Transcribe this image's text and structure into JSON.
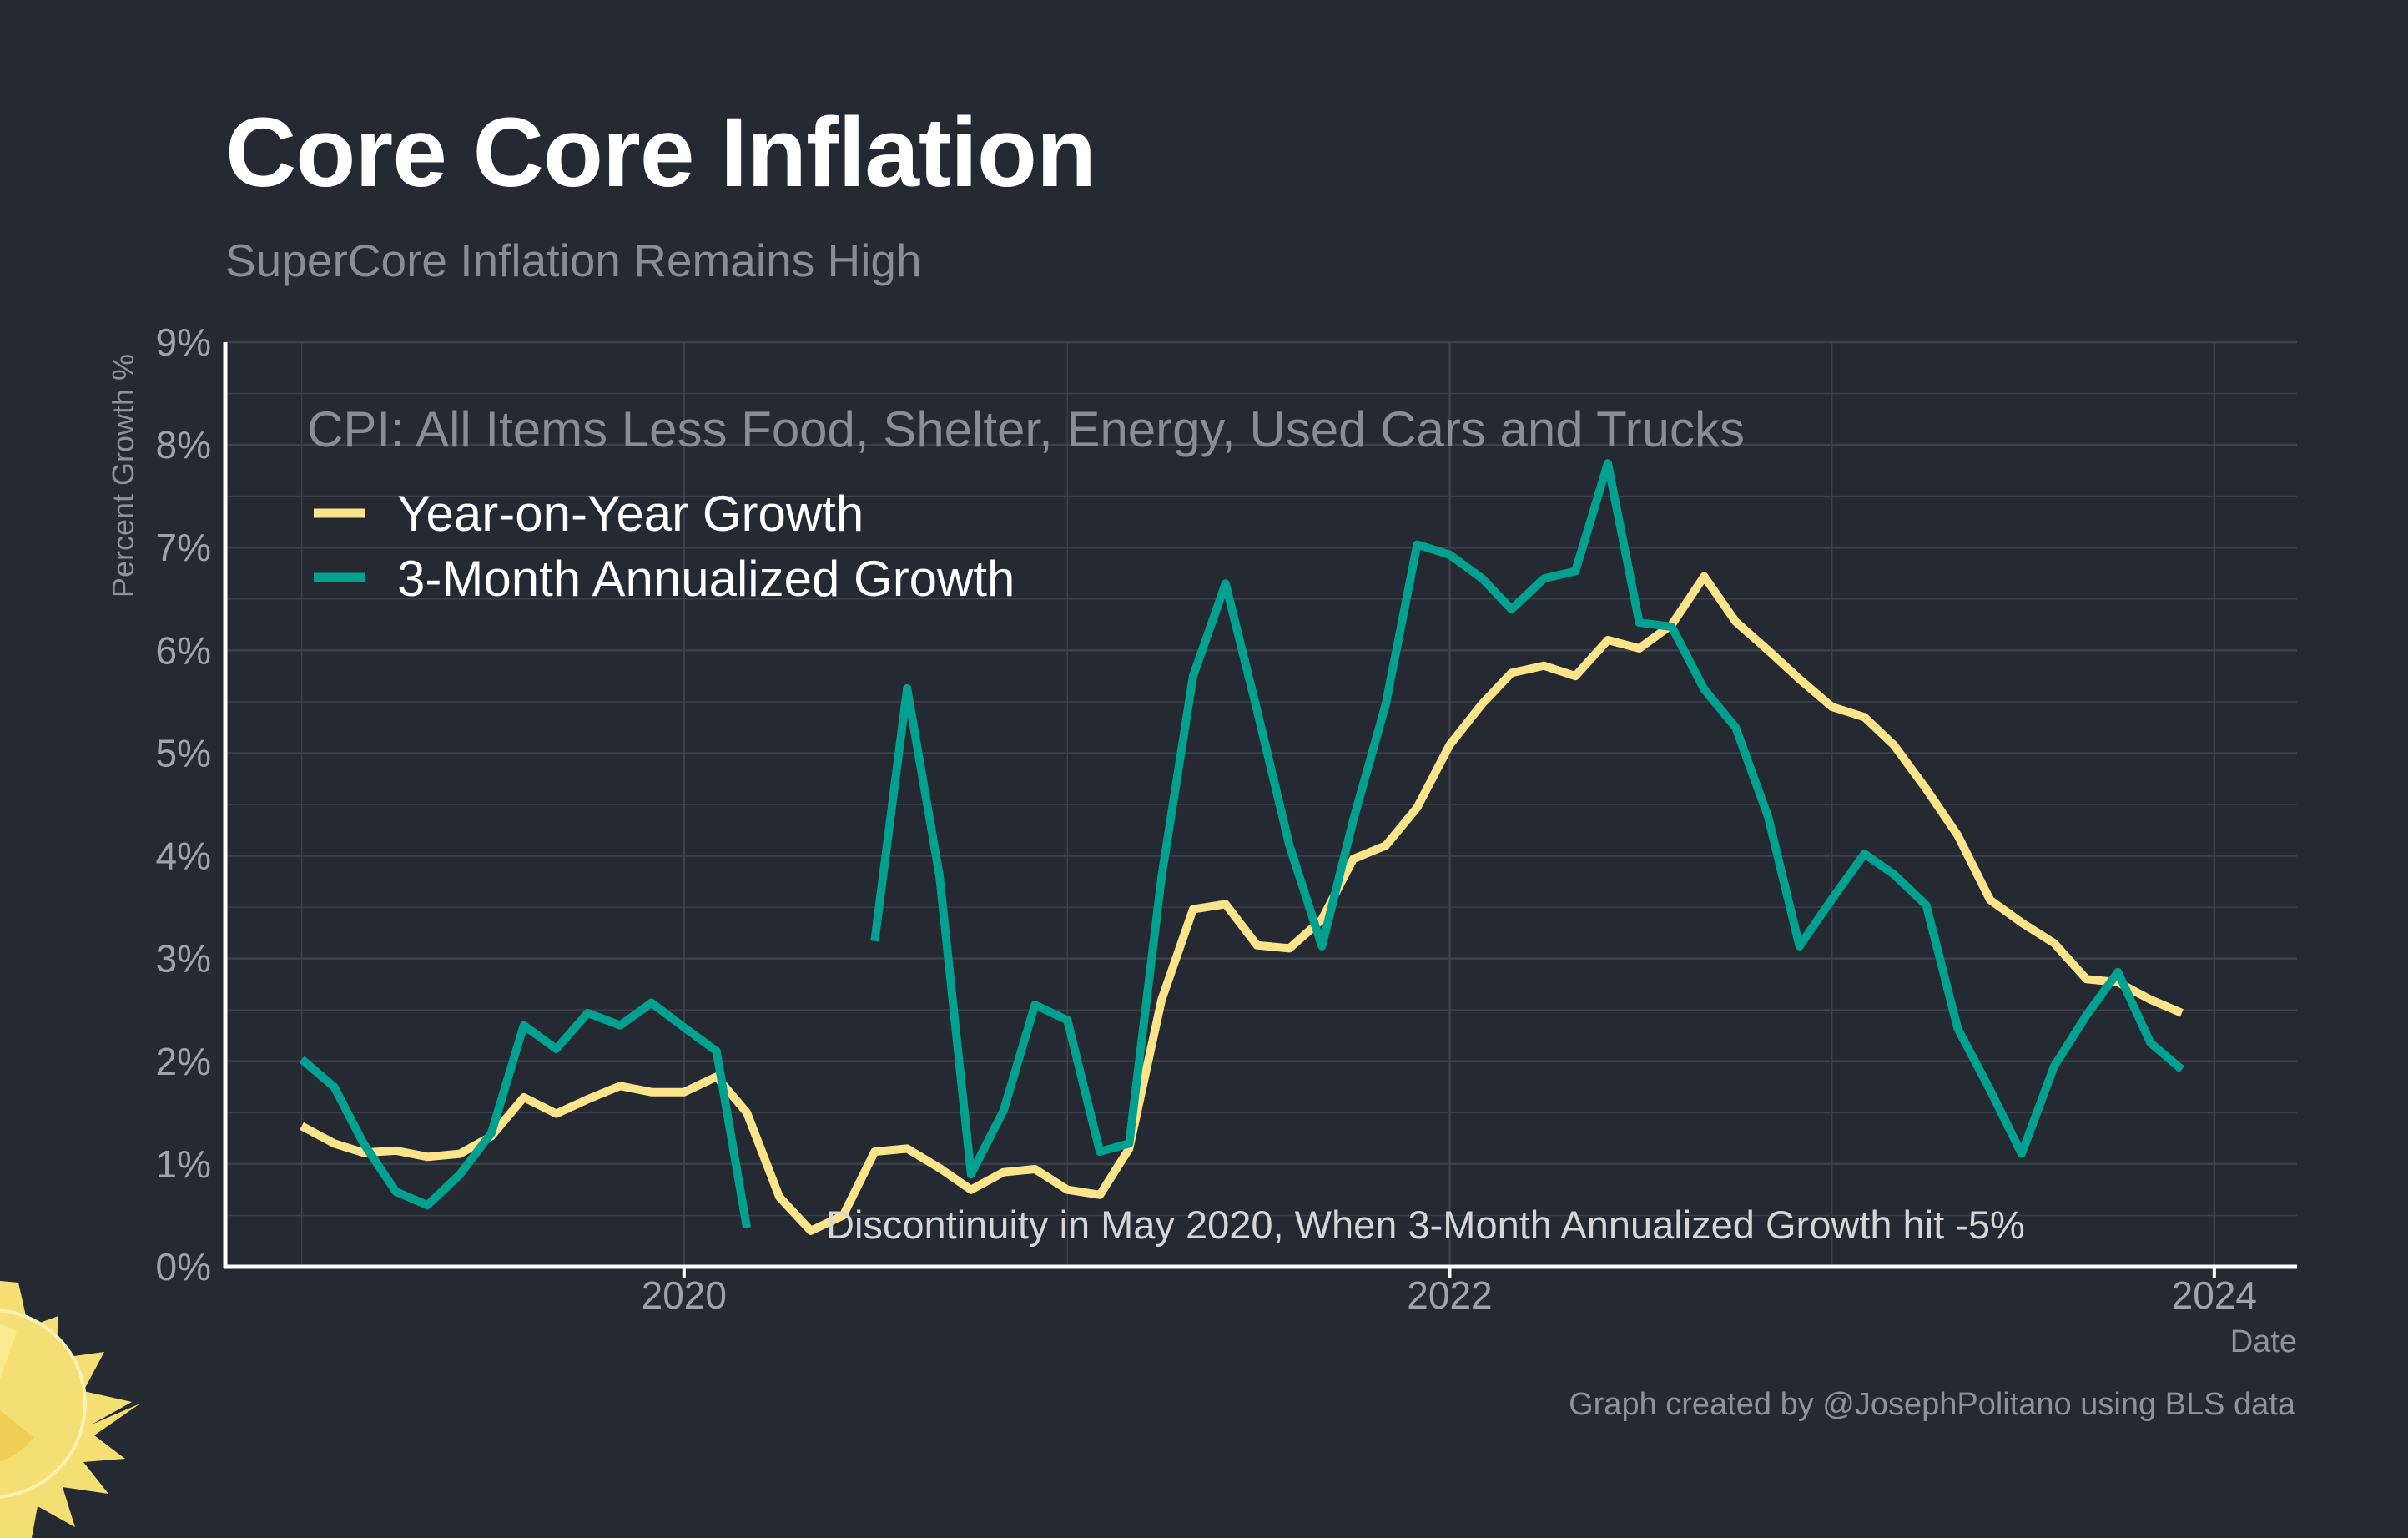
{
  "title": "Core Core Inflation",
  "subtitle": "SuperCore Inflation Remains High",
  "credit": "Graph created by @JosephPolitano using BLS data",
  "colors": {
    "background": "#252932",
    "grid": "#3c404a",
    "axis": "#ffffff",
    "yoy": "#fbe48a",
    "three_month": "#00a190",
    "sun": "#f5df74"
  },
  "chart_data": {
    "type": "line",
    "legend_title": "CPI: All Items Less Food, Shelter, Energy, Used Cars and Trucks",
    "legend_placement": "top-left",
    "annotation": "Discontinuity in May 2020, When 3-Month Annualized Growth hit -5%",
    "xlabel": "Date",
    "ylabel": "Percent Growth %",
    "xlim": [
      "2018-10-20",
      "2024-03-20"
    ],
    "ylim": [
      0,
      9
    ],
    "y_ticks": [
      "0%",
      "1%",
      "2%",
      "3%",
      "4%",
      "5%",
      "6%",
      "7%",
      "8%",
      "9%"
    ],
    "x_ticks": [
      {
        "date": "2020-01-01",
        "label": "2020"
      },
      {
        "date": "2022-01-01",
        "label": "2022"
      },
      {
        "date": "2024-01-01",
        "label": "2024"
      }
    ],
    "grid": true,
    "series": [
      {
        "name": "Year-on-Year Growth",
        "color": "#fbe48a",
        "points": [
          [
            "2019-01",
            1.37
          ],
          [
            "2019-02",
            1.2
          ],
          [
            "2019-03",
            1.11
          ],
          [
            "2019-04",
            1.13
          ],
          [
            "2019-05",
            1.07
          ],
          [
            "2019-06",
            1.1
          ],
          [
            "2019-07",
            1.27
          ],
          [
            "2019-08",
            1.65
          ],
          [
            "2019-09",
            1.49
          ],
          [
            "2019-10",
            1.63
          ],
          [
            "2019-11",
            1.76
          ],
          [
            "2019-12",
            1.7
          ],
          [
            "2020-01",
            1.7
          ],
          [
            "2020-02",
            1.85
          ],
          [
            "2020-03",
            1.5
          ],
          [
            "2020-04",
            0.68
          ],
          [
            "2020-05",
            0.35
          ],
          [
            "2020-06",
            0.5
          ],
          [
            "2020-07",
            1.12
          ],
          [
            "2020-08",
            1.15
          ],
          [
            "2020-09",
            0.96
          ],
          [
            "2020-10",
            0.75
          ],
          [
            "2020-11",
            0.92
          ],
          [
            "2020-12",
            0.95
          ],
          [
            "2021-01",
            0.75
          ],
          [
            "2021-02",
            0.7
          ],
          [
            "2021-03",
            1.15
          ],
          [
            "2021-04",
            2.6
          ],
          [
            "2021-05",
            3.48
          ],
          [
            "2021-06",
            3.53
          ],
          [
            "2021-07",
            3.13
          ],
          [
            "2021-08",
            3.1
          ],
          [
            "2021-09",
            3.38
          ],
          [
            "2021-10",
            3.97
          ],
          [
            "2021-11",
            4.1
          ],
          [
            "2021-12",
            4.47
          ],
          [
            "2022-01",
            5.08
          ],
          [
            "2022-02",
            5.48
          ],
          [
            "2022-03",
            5.78
          ],
          [
            "2022-04",
            5.85
          ],
          [
            "2022-05",
            5.75
          ],
          [
            "2022-06",
            6.1
          ],
          [
            "2022-07",
            6.02
          ],
          [
            "2022-08",
            6.25
          ],
          [
            "2022-09",
            6.72
          ],
          [
            "2022-10",
            6.28
          ],
          [
            "2022-11",
            6.0
          ],
          [
            "2022-12",
            5.72
          ],
          [
            "2023-01",
            5.45
          ],
          [
            "2023-02",
            5.35
          ],
          [
            "2023-03",
            5.08
          ],
          [
            "2023-04",
            4.65
          ],
          [
            "2023-05",
            4.2
          ],
          [
            "2023-06",
            3.57
          ],
          [
            "2023-07",
            3.35
          ],
          [
            "2023-08",
            3.15
          ],
          [
            "2023-09",
            2.8
          ],
          [
            "2023-10",
            2.77
          ],
          [
            "2023-11",
            2.6
          ],
          [
            "2023-12",
            2.47
          ]
        ]
      },
      {
        "name": "3-Month Annualized Growth",
        "color": "#00a190",
        "points": [
          [
            "2019-01",
            2.02
          ],
          [
            "2019-02",
            1.75
          ],
          [
            "2019-03",
            1.2
          ],
          [
            "2019-04",
            0.73
          ],
          [
            "2019-05",
            0.6
          ],
          [
            "2019-06",
            0.9
          ],
          [
            "2019-07",
            1.3
          ],
          [
            "2019-08",
            2.35
          ],
          [
            "2019-09",
            2.12
          ],
          [
            "2019-10",
            2.47
          ],
          [
            "2019-11",
            2.35
          ],
          [
            "2019-12",
            2.57
          ],
          [
            "2020-01",
            2.33
          ],
          [
            "2020-02",
            2.1
          ],
          [
            "2020-03",
            0.38
          ],
          [
            "2020-04",
            null
          ],
          [
            "2020-05",
            null
          ],
          [
            "2020-06",
            null
          ],
          [
            "2020-07",
            3.17
          ],
          [
            "2020-08",
            5.63
          ],
          [
            "2020-09",
            3.8
          ],
          [
            "2020-10",
            0.9
          ],
          [
            "2020-11",
            1.52
          ],
          [
            "2020-12",
            2.55
          ],
          [
            "2021-01",
            2.4
          ],
          [
            "2021-02",
            1.12
          ],
          [
            "2021-03",
            1.2
          ],
          [
            "2021-04",
            3.8
          ],
          [
            "2021-05",
            5.75
          ],
          [
            "2021-06",
            6.65
          ],
          [
            "2021-07",
            5.42
          ],
          [
            "2021-08",
            4.1
          ],
          [
            "2021-09",
            3.12
          ],
          [
            "2021-10",
            4.35
          ],
          [
            "2021-11",
            5.48
          ],
          [
            "2021-12",
            7.03
          ],
          [
            "2022-01",
            6.93
          ],
          [
            "2022-02",
            6.7
          ],
          [
            "2022-03",
            6.4
          ],
          [
            "2022-04",
            6.7
          ],
          [
            "2022-05",
            6.77
          ],
          [
            "2022-06",
            7.82
          ],
          [
            "2022-07",
            6.27
          ],
          [
            "2022-08",
            6.23
          ],
          [
            "2022-09",
            5.62
          ],
          [
            "2022-10",
            5.25
          ],
          [
            "2022-11",
            4.38
          ],
          [
            "2022-12",
            3.12
          ],
          [
            "2023-01",
            3.58
          ],
          [
            "2023-02",
            4.02
          ],
          [
            "2023-03",
            3.82
          ],
          [
            "2023-04",
            3.52
          ],
          [
            "2023-05",
            2.32
          ],
          [
            "2023-06",
            1.72
          ],
          [
            "2023-07",
            1.1
          ],
          [
            "2023-08",
            1.95
          ],
          [
            "2023-09",
            2.45
          ],
          [
            "2023-10",
            2.87
          ],
          [
            "2023-11",
            2.18
          ],
          [
            "2023-12",
            1.92
          ]
        ]
      }
    ]
  }
}
